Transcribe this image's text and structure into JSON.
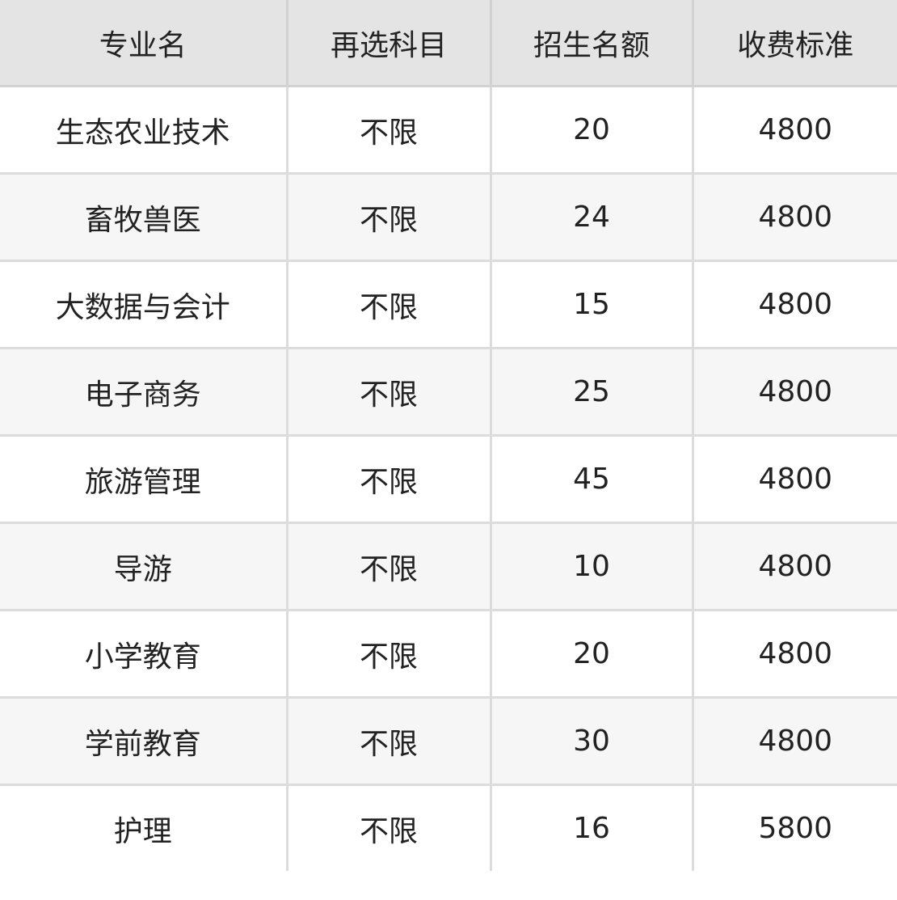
{
  "table": {
    "headers": [
      "专业名",
      "再选科目",
      "招生名额",
      "收费标准"
    ],
    "rows": [
      [
        "生态农业技术",
        "不限",
        "20",
        "4800"
      ],
      [
        "畜牧兽医",
        "不限",
        "24",
        "4800"
      ],
      [
        "大数据与会计",
        "不限",
        "15",
        "4800"
      ],
      [
        "电子商务",
        "不限",
        "25",
        "4800"
      ],
      [
        "旅游管理",
        "不限",
        "45",
        "4800"
      ],
      [
        "导游",
        "不限",
        "10",
        "4800"
      ],
      [
        "小学教育",
        "不限",
        "20",
        "4800"
      ],
      [
        "学前教育",
        "不限",
        "30",
        "4800"
      ],
      [
        "护理",
        "不限",
        "16",
        "5800"
      ]
    ]
  }
}
